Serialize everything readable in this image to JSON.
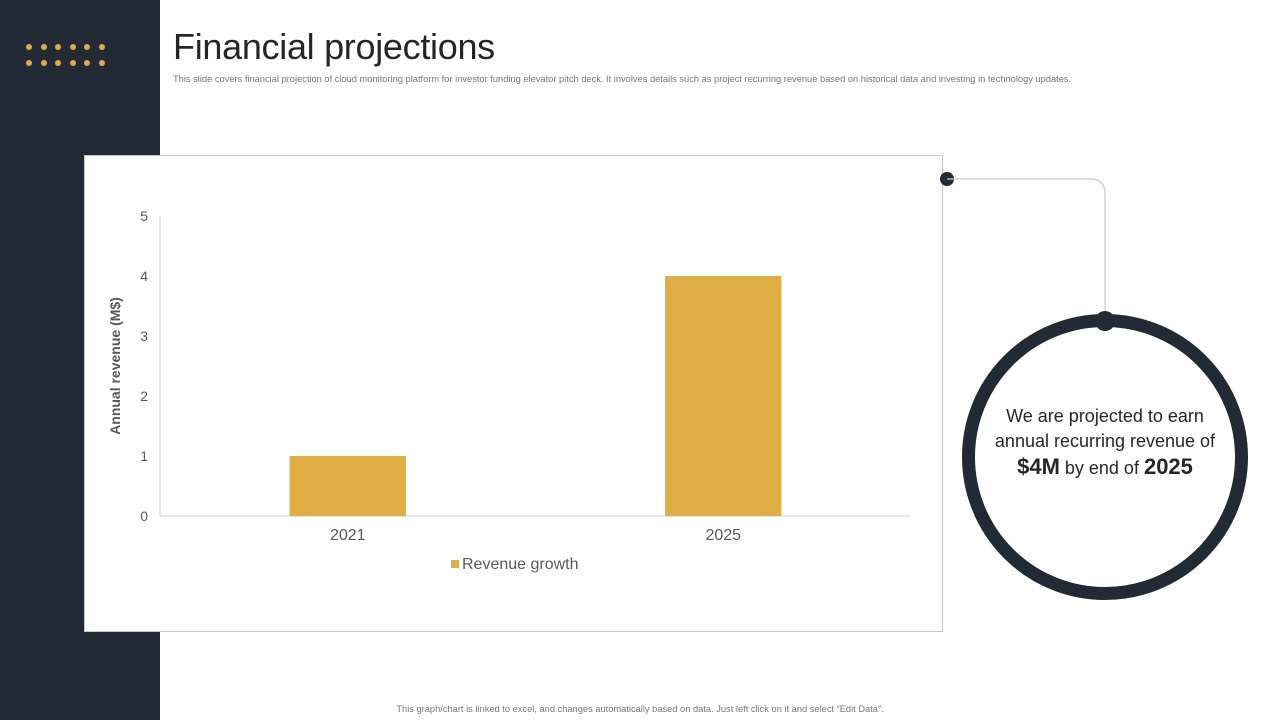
{
  "slide": {
    "title": "Financial projections",
    "subtitle": "This slide covers financial projection of cloud monitoring platform for investor funding elevator pitch deck. It involves details such as project recurring revenue based on historical data and investing in technology updates.",
    "footer": "This graph/chart is linked to excel, and changes automatically based on data. Just left click on it and select “Edit Data”."
  },
  "callout": {
    "text_1": "We are projected to earn annual recurring revenue of ",
    "amount": "$4M",
    "text_2": " by end of ",
    "year": "2025"
  },
  "colors": {
    "sidebar": "#222a35",
    "accent": "#e0ad42",
    "bar": "#e0ad42"
  },
  "chart_data": {
    "type": "bar",
    "categories": [
      "2021",
      "2025"
    ],
    "series": [
      {
        "name": "Revenue growth",
        "values": [
          1,
          4
        ]
      }
    ],
    "title": "",
    "xlabel": "",
    "ylabel": "Annual revenue (M$)",
    "ylim": [
      0,
      5
    ],
    "yticks": [
      0,
      1,
      2,
      3,
      4,
      5
    ],
    "grid": false,
    "legend": "bottom"
  }
}
